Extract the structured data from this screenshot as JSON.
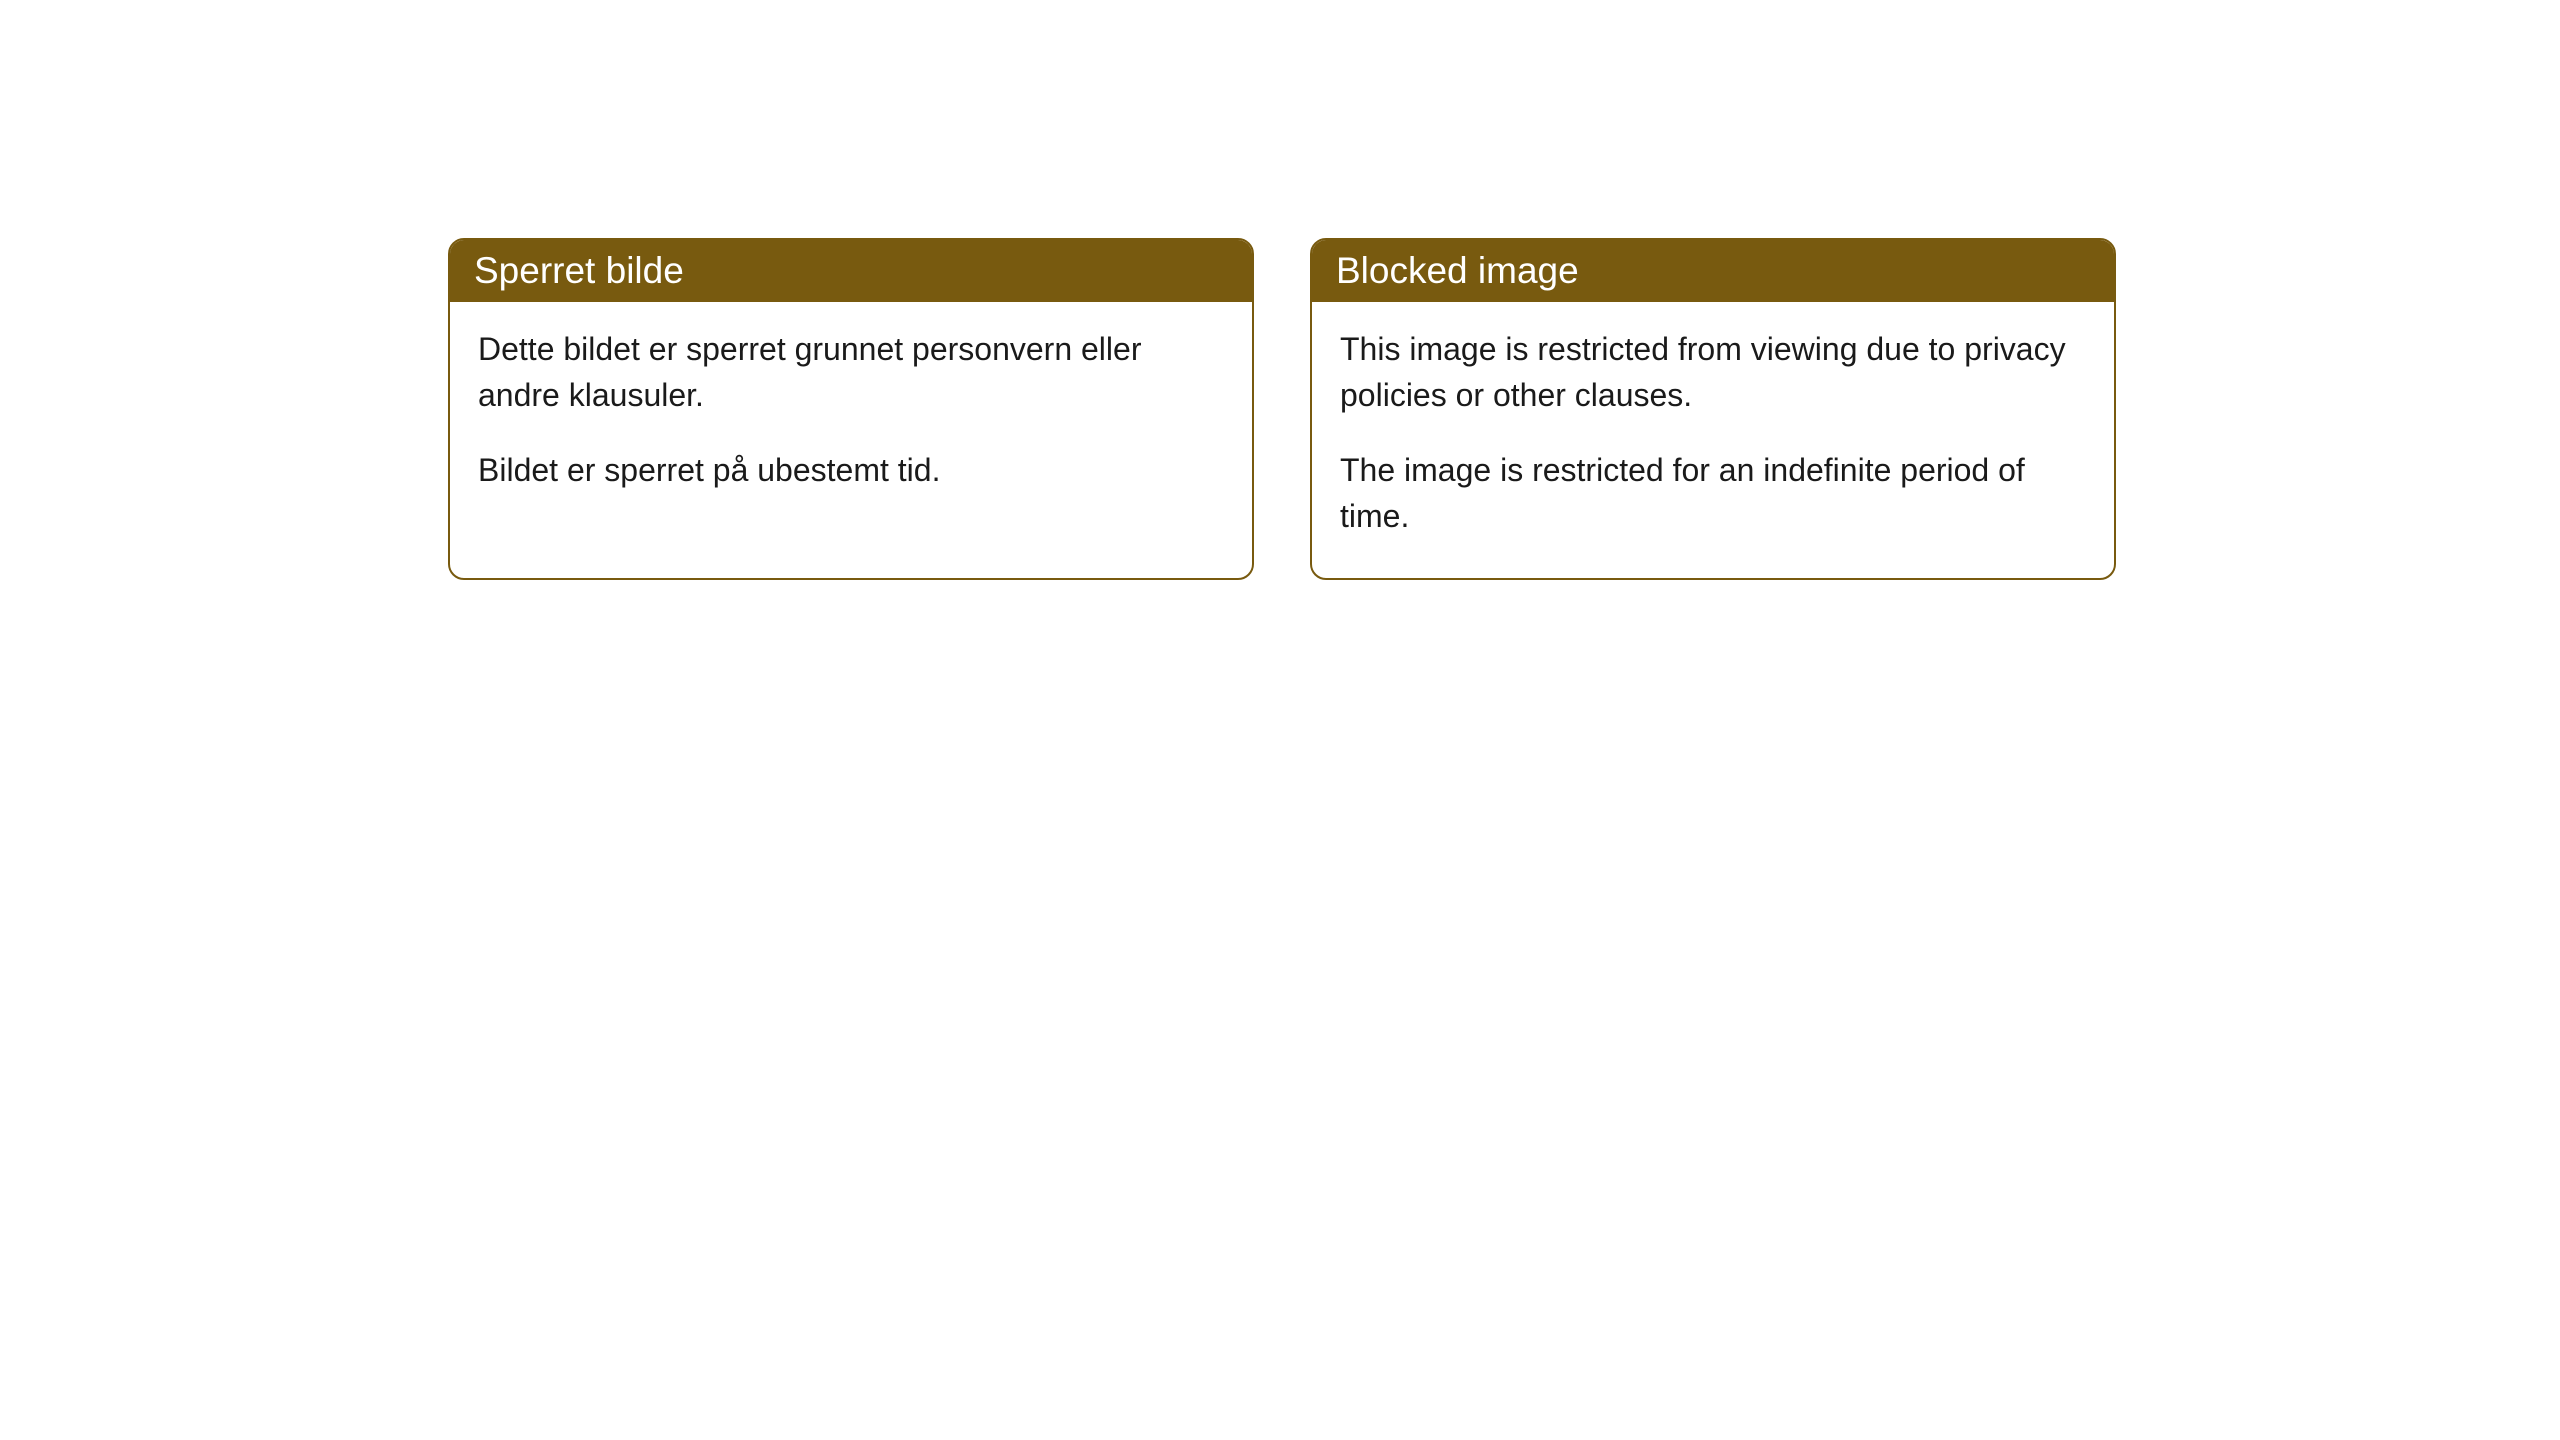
{
  "cards": [
    {
      "header": "Sperret bilde",
      "paragraph1": "Dette bildet er sperret grunnet personvern eller andre klausuler.",
      "paragraph2": "Bildet er sperret på ubestemt tid."
    },
    {
      "header": "Blocked image",
      "paragraph1": "This image is restricted from viewing due to privacy policies or other clauses.",
      "paragraph2": "The image is restricted for an indefinite period of time."
    }
  ],
  "styling": {
    "header_bg_color": "#785a0f",
    "header_text_color": "#ffffff",
    "card_border_color": "#785a0f",
    "card_bg_color": "#ffffff",
    "body_text_color": "#1a1a1a",
    "page_bg_color": "#ffffff",
    "border_radius": 16,
    "header_fontsize": 37,
    "body_fontsize": 32
  }
}
